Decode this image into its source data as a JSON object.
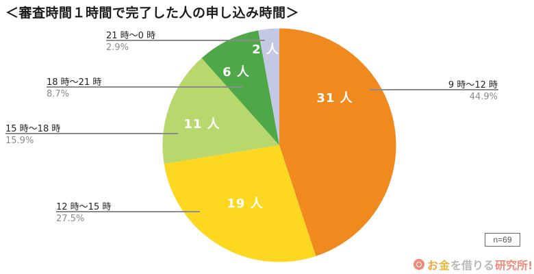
{
  "title": "＜審査時間１時間で完了した人の申し込み時間＞",
  "sample_size": "n=69",
  "logo": {
    "icon": "spiral-logo-icon",
    "part1": "お",
    "part2": "金",
    "part3": "を借りる",
    "part4": "研究所!"
  },
  "colors": {
    "orange": "#f18a1e",
    "yellow": "#fed720",
    "light_green": "#b8d86e",
    "green": "#4ea847",
    "lavender": "#c3c8e4",
    "leader": "#8c8c8c"
  },
  "slices": [
    {
      "label": "9 時〜12 時",
      "pct": "44.9%",
      "inner": "31 人",
      "count": 31,
      "color": "#f18a1e"
    },
    {
      "label": "12 時〜15 時",
      "pct": "27.5%",
      "inner": "19 人",
      "count": 19,
      "color": "#fed720"
    },
    {
      "label": "15 時〜18 時",
      "pct": "15.9%",
      "inner": "11 人",
      "count": 11,
      "color": "#b8d86e"
    },
    {
      "label": "18 時〜21 時",
      "pct": "8.7%",
      "inner": "6 人",
      "count": 6,
      "color": "#4ea847"
    },
    {
      "label": "21 時〜0 時",
      "pct": "2.9%",
      "inner": "2 人",
      "count": 2,
      "color": "#c3c8e4"
    }
  ],
  "chart_data": {
    "type": "pie",
    "title": "＜審査時間１時間で完了した人の申し込み時間＞",
    "categories": [
      "9 時〜12 時",
      "12 時〜15 時",
      "15 時〜18 時",
      "18 時〜21 時",
      "21 時〜0 時"
    ],
    "values": [
      31,
      19,
      11,
      6,
      2
    ],
    "percentages": [
      44.9,
      27.5,
      15.9,
      8.7,
      2.9
    ],
    "value_labels": [
      "31 人",
      "19 人",
      "11 人",
      "6 人",
      "2 人"
    ],
    "colors": [
      "#f18a1e",
      "#fed720",
      "#b8d86e",
      "#4ea847",
      "#c3c8e4"
    ],
    "start_angle": "12 o'clock",
    "direction": "clockwise",
    "total": 69,
    "annotation": "n=69",
    "legend": "none (leader-line labels)"
  }
}
